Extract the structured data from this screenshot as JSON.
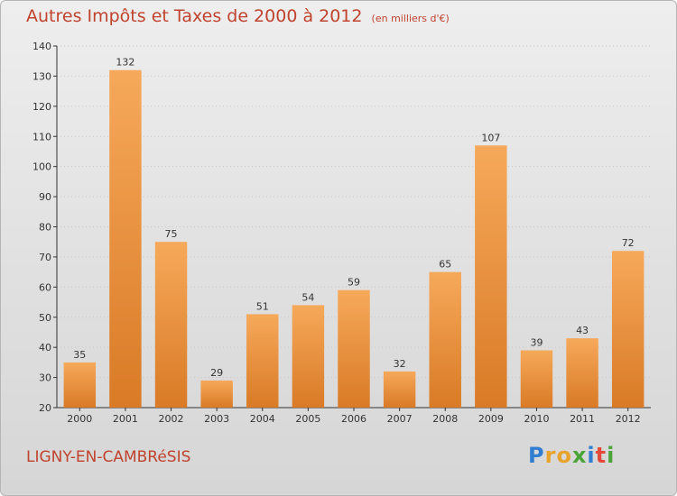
{
  "header": {
    "title": "Autres Impôts et Taxes de 2000 à 2012",
    "subtitle": "(en milliers d'€)"
  },
  "footer": {
    "commune": "LIGNY-EN-CAMBRéSIS",
    "logo_letters": [
      "P",
      "r",
      "o",
      "x",
      "i",
      "t",
      "i"
    ]
  },
  "colors": {
    "bar_light": "#f6a95a",
    "bar_dark": "#d97a26",
    "title": "#c0432e"
  },
  "chart_data": {
    "type": "bar",
    "title": "Autres Impôts et Taxes de 2000 à 2012",
    "subtitle": "(en milliers d'€)",
    "categories": [
      "2000",
      "2001",
      "2002",
      "2003",
      "2004",
      "2005",
      "2006",
      "2007",
      "2008",
      "2009",
      "2010",
      "2011",
      "2012"
    ],
    "values": [
      35,
      132,
      75,
      29,
      51,
      54,
      59,
      32,
      65,
      107,
      39,
      43,
      72
    ],
    "ylim": [
      20,
      140
    ],
    "yticks": [
      20,
      30,
      40,
      50,
      60,
      70,
      80,
      90,
      100,
      110,
      120,
      130,
      140
    ],
    "grid": true,
    "legend": "none"
  }
}
